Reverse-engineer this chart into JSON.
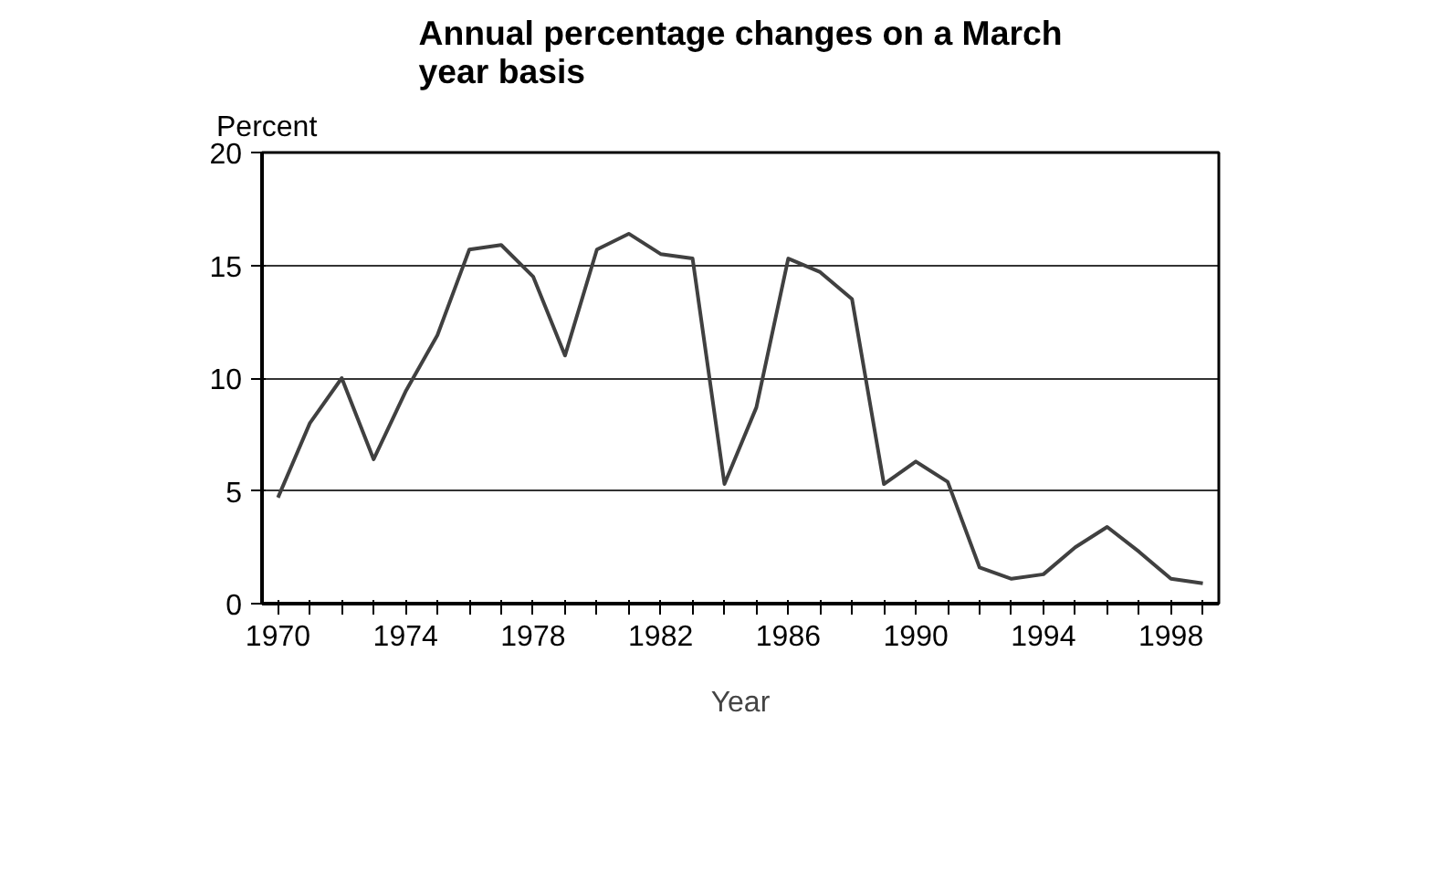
{
  "chart_data": {
    "type": "line",
    "title": "Annual percentage changes on a March year basis",
    "xlabel": "Year",
    "ylabel": "Percent",
    "categories": [
      "1970",
      null,
      null,
      null,
      "1974",
      null,
      null,
      null,
      "1978",
      null,
      null,
      null,
      "1982",
      null,
      null,
      null,
      "1986",
      null,
      null,
      null,
      "1990",
      null,
      null,
      null,
      "1994",
      null,
      null,
      null,
      "1998",
      null
    ],
    "series": [
      {
        "color": "#404040",
        "values": [
          4.7,
          8.0,
          10.0,
          6.4,
          9.4,
          11.9,
          15.7,
          15.9,
          14.5,
          11.0,
          15.7,
          16.4,
          15.5,
          15.3,
          5.3,
          8.7,
          15.3,
          14.7,
          13.5,
          5.3,
          6.3,
          5.4,
          1.6,
          1.1,
          1.3,
          2.5,
          3.4,
          2.3,
          1.1,
          0.9
        ]
      }
    ],
    "ylim": [
      0,
      20
    ],
    "yticks": [
      0,
      5,
      10,
      15,
      20
    ],
    "grid": "y",
    "marker": "none",
    "line_style": "solid"
  }
}
